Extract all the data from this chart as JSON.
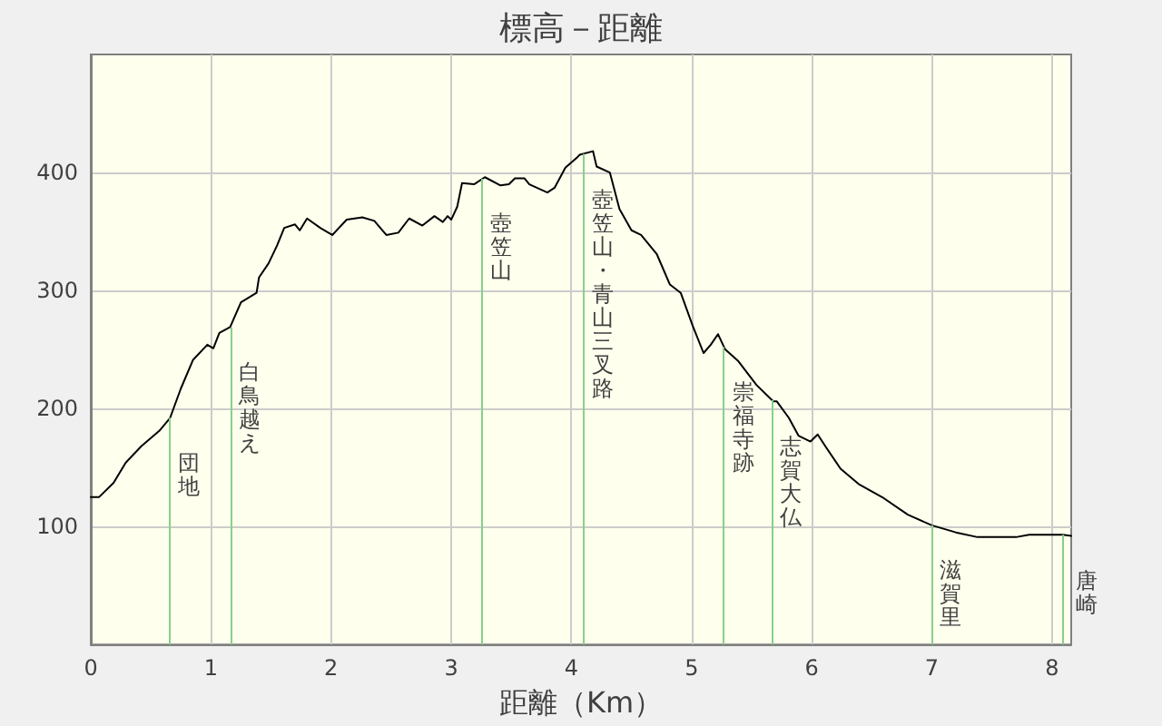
{
  "chart_data": {
    "type": "line",
    "title": "標高－距離",
    "xlabel": "距離（Km）",
    "x": [
      0,
      0.07,
      0.12,
      0.19,
      0.29,
      0.42,
      0.57,
      0.66,
      0.75,
      0.85,
      0.97,
      1.02,
      1.07,
      1.16,
      1.25,
      1.38,
      1.4,
      1.48,
      1.55,
      1.61,
      1.7,
      1.74,
      1.8,
      1.91,
      2.01,
      2.13,
      2.26,
      2.36,
      2.46,
      2.56,
      2.65,
      2.76,
      2.86,
      2.93,
      2.97,
      3.0,
      3.05,
      3.09,
      3.19,
      3.28,
      3.41,
      3.48,
      3.53,
      3.61,
      3.65,
      3.8,
      3.86,
      3.95,
      4.05,
      4.07,
      4.18,
      4.21,
      4.32,
      4.4,
      4.5,
      4.58,
      4.71,
      4.82,
      4.91,
      5.01,
      5.1,
      5.16,
      5.22,
      5.28,
      5.39,
      5.54,
      5.68,
      5.71,
      5.81,
      5.89,
      5.99,
      6.05,
      6.12,
      6.24,
      6.39,
      6.6,
      6.8,
      7.0,
      7.2,
      7.38,
      7.7,
      7.81,
      8.09,
      8.16
    ],
    "series": [
      {
        "color": "#000000",
        "values": [
          125,
          125,
          130,
          137,
          154,
          168,
          181,
          192,
          217,
          241,
          254,
          251,
          264,
          269,
          290,
          298,
          311,
          323,
          338,
          353,
          356,
          351,
          361,
          353,
          347,
          360,
          362,
          359,
          347,
          349,
          361,
          355,
          363,
          358,
          363,
          360,
          371,
          391,
          390,
          396,
          389,
          390,
          395,
          395,
          390,
          383,
          387,
          404,
          413,
          415,
          418,
          405,
          400,
          369,
          351,
          347,
          331,
          305,
          298,
          270,
          247,
          254,
          263,
          250,
          240,
          220,
          206,
          206,
          192,
          177,
          172,
          178,
          167,
          149,
          136,
          124,
          110,
          101,
          95,
          91,
          91,
          93,
          93,
          92
        ]
      }
    ],
    "xlim": [
      0,
      8.16
    ],
    "xticks": [
      0,
      1,
      2,
      3,
      4,
      5,
      6,
      7,
      8
    ],
    "ylim": [
      0,
      500
    ],
    "yticks": [
      100,
      200,
      300,
      400
    ],
    "ref_lines": [
      {
        "axis": "x",
        "value": 0.66,
        "label": "団地",
        "color": "#88d088"
      },
      {
        "axis": "x",
        "value": 1.16,
        "label": "白鳥越え",
        "color": "#88d088"
      },
      {
        "axis": "x",
        "value": 3.26,
        "label": "壺笠山",
        "color": "#88d088"
      },
      {
        "axis": "x",
        "value": 4.1,
        "label": "壺笠山・青山三叉路",
        "color": "#88d088"
      },
      {
        "axis": "x",
        "value": 5.27,
        "label": "崇福寺跡",
        "color": "#88d088"
      },
      {
        "axis": "x",
        "value": 5.67,
        "label": "志賀大仏",
        "color": "#88d088"
      },
      {
        "axis": "x",
        "value": 7.0,
        "label": "滋賀里",
        "color": "#88d088"
      },
      {
        "axis": "x",
        "value": 8.09,
        "label": "唐崎",
        "color": "#88d088"
      }
    ],
    "grid": true,
    "line_style": "solid"
  }
}
